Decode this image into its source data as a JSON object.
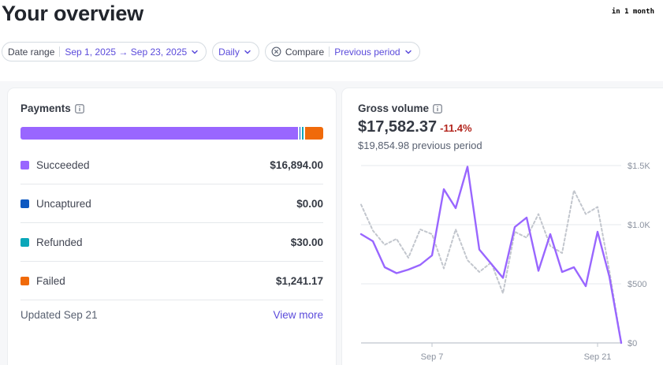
{
  "header": {
    "title": "Your overview",
    "relative_time": "in 1 month"
  },
  "filters": {
    "date_range": {
      "label": "Date range",
      "value": "Sep 1, 2025 → Sep 23, 2025"
    },
    "interval": {
      "value": "Daily"
    },
    "compare": {
      "label": "Compare",
      "value": "Previous period"
    }
  },
  "payments": {
    "title": "Payments",
    "rows": [
      {
        "label": "Succeeded",
        "amount": "$16,894.00",
        "value": 16894.0,
        "color": "#9966ff"
      },
      {
        "label": "Uncaptured",
        "amount": "$0.00",
        "value": 0,
        "color": "#0d58c1"
      },
      {
        "label": "Refunded",
        "amount": "$30.00",
        "value": 30.0,
        "color": "#0aa7b9"
      },
      {
        "label": "Failed",
        "amount": "$1,241.17",
        "value": 1241.17,
        "color": "#f06a0a"
      }
    ],
    "updated": "Updated Sep 21",
    "view_more": "View more"
  },
  "gross_volume": {
    "title": "Gross volume",
    "amount": "$17,582.37",
    "change": "-11.4%",
    "previous": "$19,854.98 previous period",
    "colors": {
      "current": "#9966ff",
      "previous": "#c2c6cd",
      "negative": "#b3261e"
    }
  },
  "chart_data": {
    "type": "line",
    "x": [
      "Sep 1",
      "Sep 2",
      "Sep 3",
      "Sep 4",
      "Sep 5",
      "Sep 6",
      "Sep 7",
      "Sep 8",
      "Sep 9",
      "Sep 10",
      "Sep 11",
      "Sep 12",
      "Sep 13",
      "Sep 14",
      "Sep 15",
      "Sep 16",
      "Sep 17",
      "Sep 18",
      "Sep 19",
      "Sep 20",
      "Sep 21",
      "Sep 22",
      "Sep 23"
    ],
    "x_tick_labels": [
      "Sep 7",
      "Sep 21"
    ],
    "y_tick_labels": [
      "$0",
      "$500",
      "$1.0K",
      "$1.5K"
    ],
    "ylim": [
      0,
      1500
    ],
    "grid": true,
    "series": [
      {
        "key": "current",
        "values": [
          920,
          860,
          640,
          590,
          620,
          660,
          740,
          1300,
          1140,
          1490,
          790,
          670,
          550,
          980,
          1060,
          610,
          920,
          600,
          640,
          480,
          940,
          560,
          0
        ]
      },
      {
        "key": "previous",
        "values": [
          1170,
          950,
          830,
          880,
          720,
          960,
          920,
          630,
          960,
          700,
          600,
          680,
          420,
          940,
          890,
          1090,
          820,
          760,
          1290,
          1090,
          1150,
          610,
          0
        ]
      }
    ]
  }
}
